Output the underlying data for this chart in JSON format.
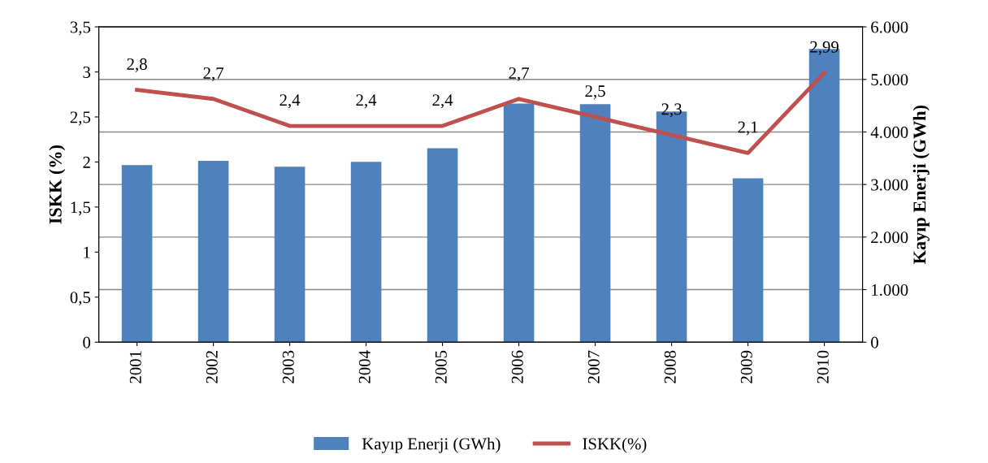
{
  "chart_data": {
    "type": "bar",
    "ylabel": "ISKK (%)",
    "y2label": "Kayıp Enerji (GWh)",
    "categories": [
      "2001",
      "2002",
      "2003",
      "2004",
      "2005",
      "2006",
      "2007",
      "2008",
      "2009",
      "2010"
    ],
    "series": [
      {
        "name": "Kayıp Enerji (GWh)",
        "axis": "y2",
        "color": "#4f81bd",
        "values": [
          3370,
          3450,
          3340,
          3430,
          3690,
          4540,
          4530,
          4390,
          3120,
          5580
        ]
      },
      {
        "name": "ISKK(%)",
        "type": "line",
        "color": "#c0504d",
        "values": [
          2.8,
          2.7,
          2.4,
          2.4,
          2.4,
          2.7,
          2.5,
          2.3,
          2.1,
          2.99
        ],
        "value_labels": [
          "2,8",
          "2,7",
          "2,4",
          "2,4",
          "2,4",
          "2,7",
          "2,5",
          "2,3",
          "2,1",
          "2,99"
        ]
      }
    ],
    "ylim": [
      0,
      3.5
    ],
    "yticks": [
      0,
      {
        "value": 0.5,
        "label": "0,5"
      },
      1,
      {
        "value": 1.5,
        "label": "1,5"
      },
      2,
      {
        "value": 2.5,
        "label": "2,5"
      },
      3,
      {
        "value": 3.5,
        "label": "3,5"
      }
    ],
    "y2lim": [
      0,
      6000
    ],
    "y2ticks": [
      0,
      {
        "value": 1000,
        "label": "1.000"
      },
      {
        "value": 2000,
        "label": "2.000"
      },
      {
        "value": 3000,
        "label": "3.000"
      },
      {
        "value": 4000,
        "label": "4.000"
      },
      {
        "value": 5000,
        "label": "5.000"
      },
      {
        "value": 6000,
        "label": "6.000"
      }
    ],
    "grid": "y",
    "legend": "bottom"
  }
}
